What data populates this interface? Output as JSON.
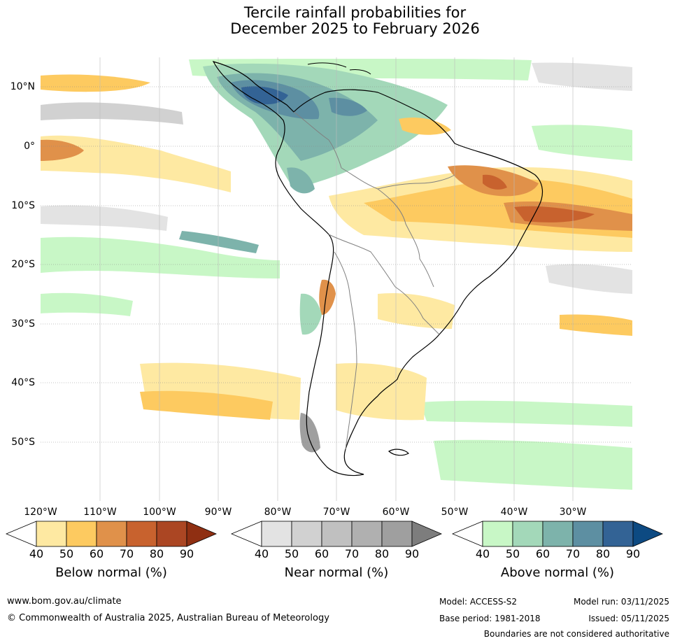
{
  "title": {
    "line1": "Tercile rainfall probabilities for",
    "line2": "December 2025 to February 2026"
  },
  "map": {
    "region": "South America",
    "lon_labels": [
      "120°W",
      "110°W",
      "100°W",
      "90°W",
      "80°W",
      "70°W",
      "60°W",
      "50°W",
      "40°W",
      "30°W"
    ],
    "lat_labels": [
      "10°N",
      "0°",
      "10°S",
      "20°S",
      "30°S",
      "40°S",
      "50°S"
    ]
  },
  "legend": {
    "below": {
      "title": "Below normal (%)",
      "ticks": [
        "40",
        "50",
        "60",
        "70",
        "80",
        "90"
      ],
      "colors": [
        "#ffffff",
        "#fee9a2",
        "#fdca60",
        "#e0914a",
        "#c8622e",
        "#ab4623",
        "#8f2f12"
      ]
    },
    "near": {
      "title": "Near normal (%)",
      "ticks": [
        "40",
        "50",
        "60",
        "70",
        "80",
        "90"
      ],
      "colors": [
        "#ffffff",
        "#e3e3e3",
        "#d1d1d1",
        "#c0c0c0",
        "#b0b0b0",
        "#9f9f9f",
        "#7d7d7d"
      ]
    },
    "above": {
      "title": "Above normal (%)",
      "ticks": [
        "40",
        "50",
        "60",
        "70",
        "80",
        "90"
      ],
      "colors": [
        "#ffffff",
        "#c8f7c6",
        "#a3d8b9",
        "#7db3ab",
        "#5d8fa2",
        "#336395",
        "#0d4a82"
      ]
    }
  },
  "footer": {
    "url": "www.bom.gov.au/climate",
    "copyright": "© Commonwealth of Australia 2025, Australian Bureau of Meteorology",
    "model": "Model: ACCESS-S2",
    "base_period": "Base period: 1981-2018",
    "model_run": "Model run: 03/11/2025",
    "issued": "Issued: 05/11/2025",
    "disclaimer": "Boundaries are not considered authoritative"
  }
}
